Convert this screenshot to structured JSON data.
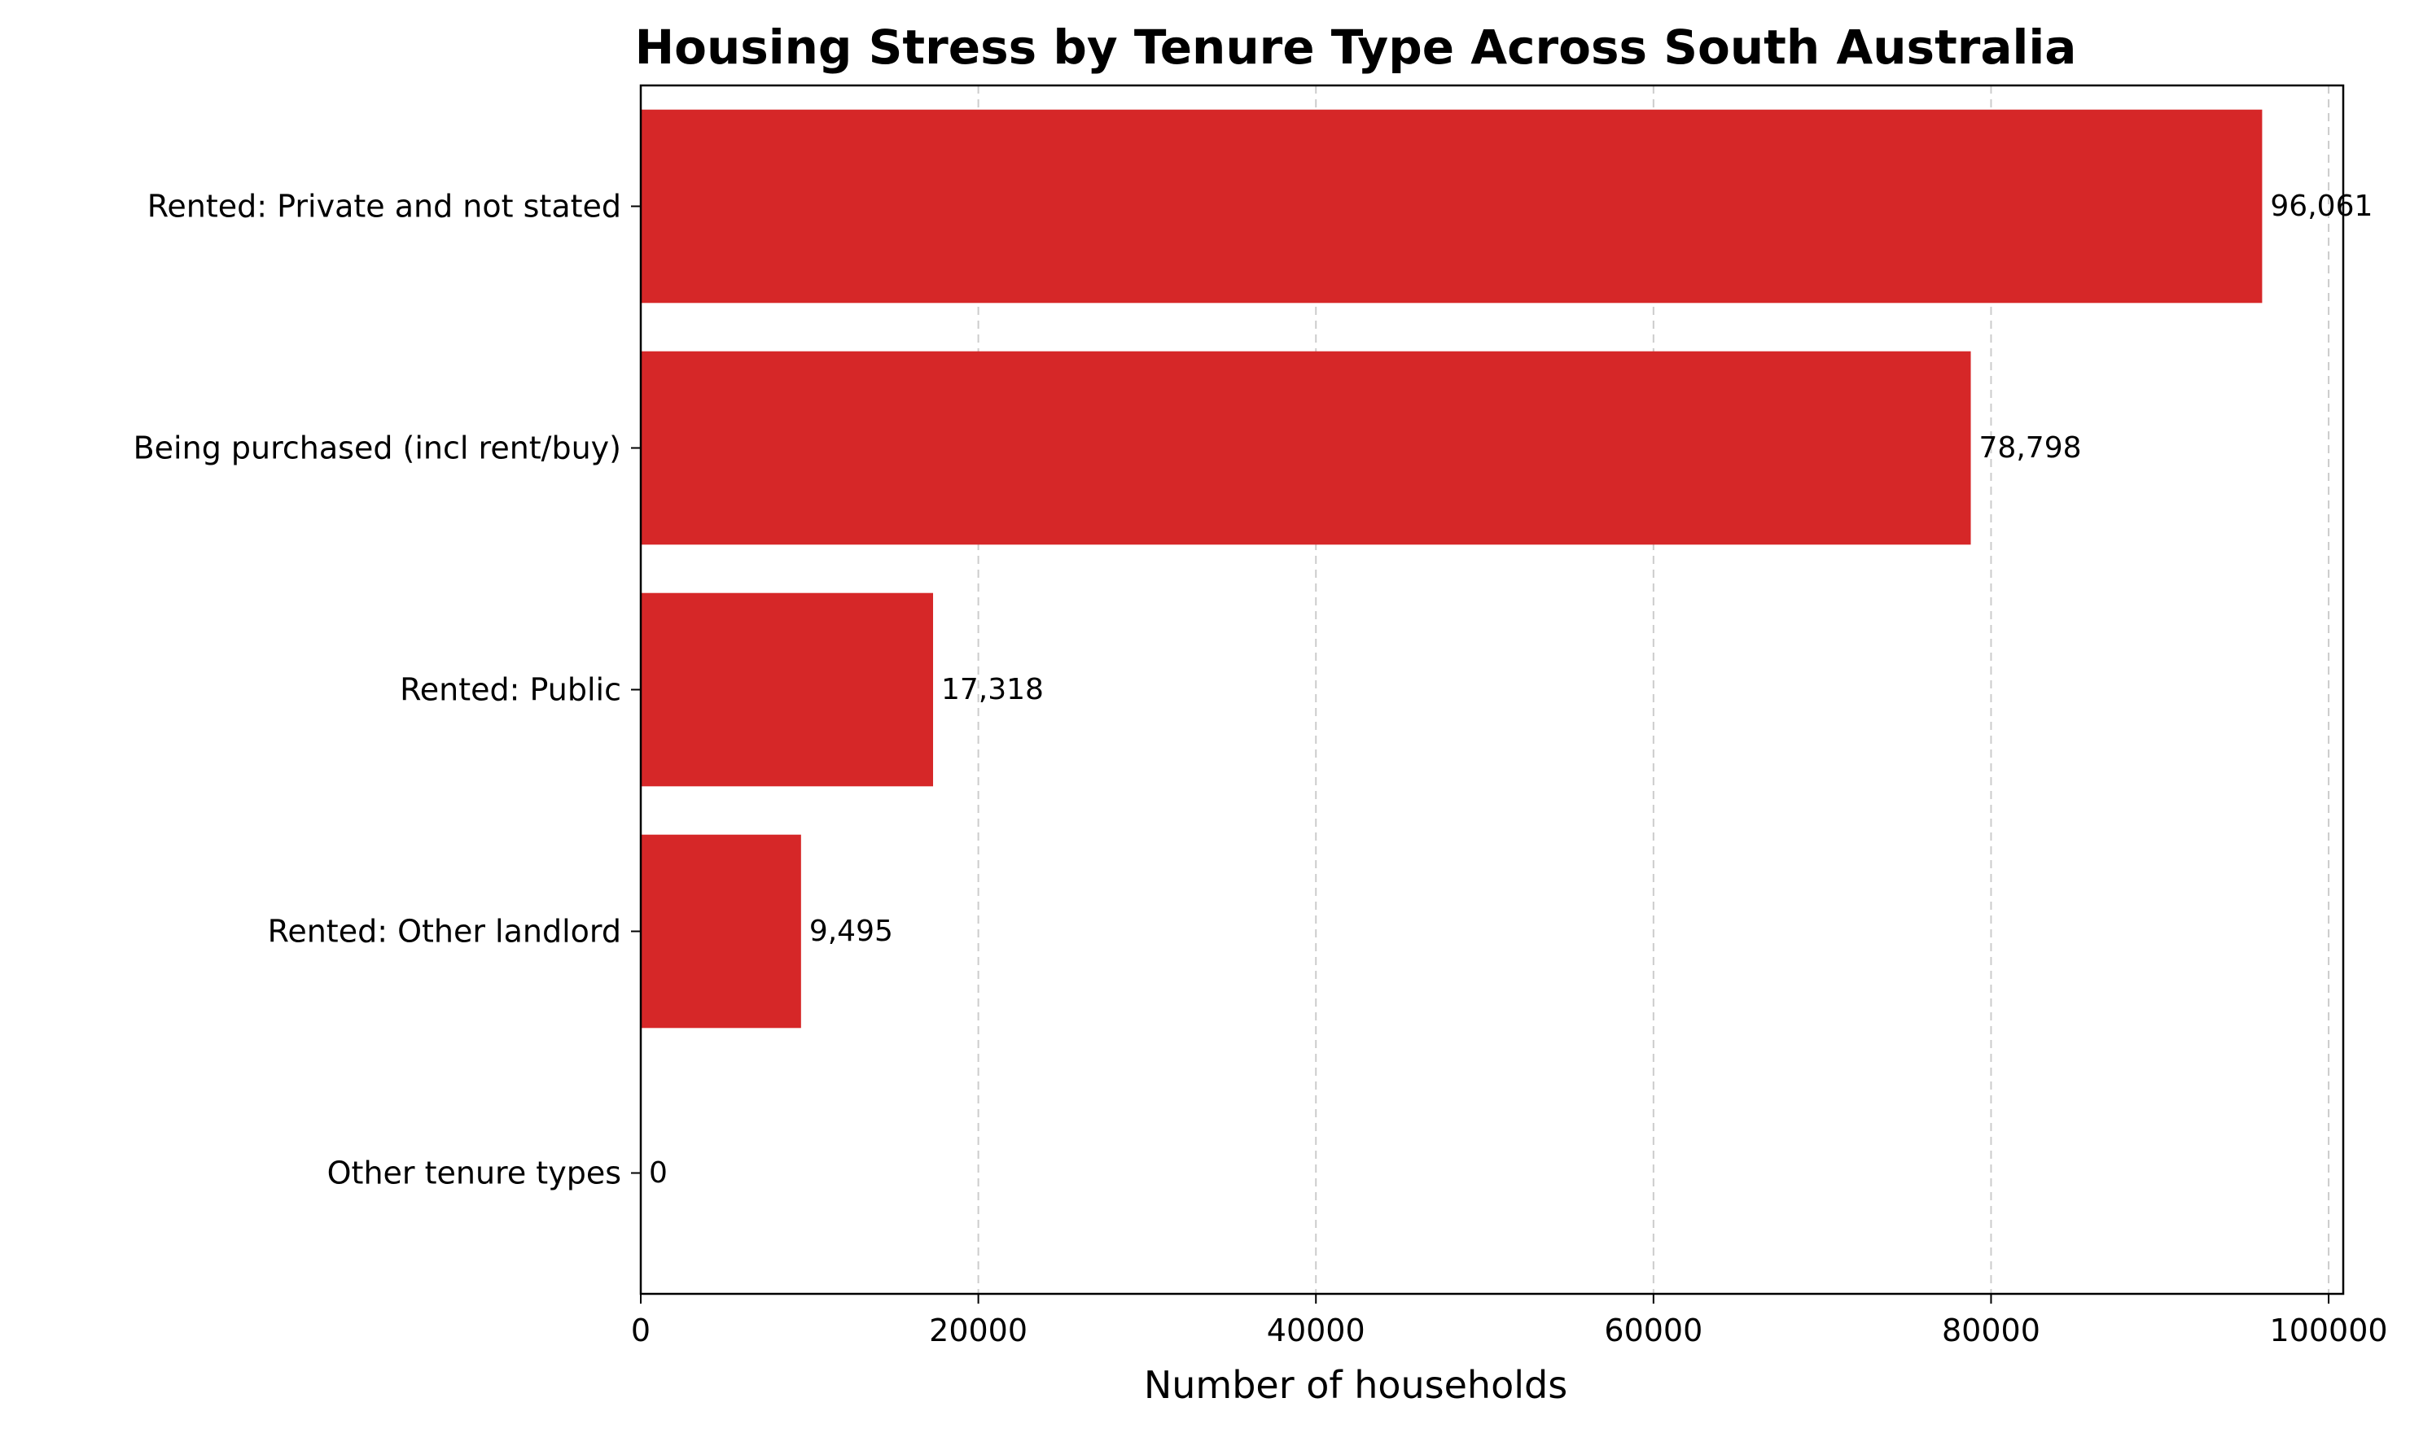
{
  "chart_data": {
    "type": "bar",
    "orientation": "horizontal",
    "title": "Housing Stress by Tenure Type Across South Australia",
    "xlabel": "Number of households",
    "ylabel": "",
    "categories": [
      "Rented: Private and not stated",
      "Being purchased (incl rent/buy)",
      "Rented: Public",
      "Rented: Other landlord",
      "Other tenure types"
    ],
    "values": [
      96061,
      78798,
      17318,
      9495,
      0
    ],
    "data_labels": [
      "96,061",
      "78,798",
      "17,318",
      "9,495",
      "0"
    ],
    "xlim": [
      0,
      100865
    ],
    "xticks": [
      0,
      20000,
      40000,
      60000,
      80000,
      100000
    ],
    "xtick_labels": [
      "0",
      "20000",
      "40000",
      "60000",
      "80000",
      "100000"
    ],
    "grid": "x-dashed",
    "bar_color": "#d62728"
  }
}
